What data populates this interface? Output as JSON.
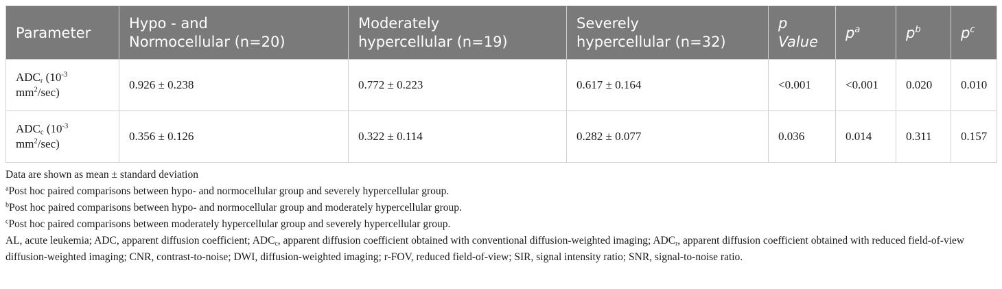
{
  "table": {
    "headers": {
      "parameter": "Parameter",
      "group1_line1": "Hypo - and",
      "group1_line2": "Normocellular (n=20)",
      "group2_line1": "Moderately",
      "group2_line2": "hypercellular (n=19)",
      "group3_line1": "Severely",
      "group3_line2": "hypercellular (n=32)",
      "pvalue_p": "p",
      "pvalue_word": "Value",
      "pa_p": "p",
      "pa_sup": "a",
      "pb_p": "p",
      "pb_sup": "b",
      "pc_p": "p",
      "pc_sup": "c"
    },
    "rows": [
      {
        "param_base": "ADC",
        "param_sub": "r",
        "param_unit_pre": " (10",
        "param_unit_exp": "-3",
        "param_line2_pre": "mm",
        "param_line2_exp": "2",
        "param_line2_post": "/sec)",
        "g1": "0.926 ± 0.238",
        "g2": "0.772 ± 0.223",
        "g3": "0.617 ± 0.164",
        "p": "<0.001",
        "pa": "<0.001",
        "pb": "0.020",
        "pc": "0.010"
      },
      {
        "param_base": "ADC",
        "param_sub": "c",
        "param_unit_pre": " (10",
        "param_unit_exp": "-3",
        "param_line2_pre": "mm",
        "param_line2_exp": "2",
        "param_line2_post": "/sec)",
        "g1": "0.356 ± 0.126",
        "g2": "0.322 ± 0.114",
        "g3": "0.282 ± 0.077",
        "p": "0.036",
        "pa": "0.014",
        "pb": "0.311",
        "pc": "0.157"
      }
    ]
  },
  "notes": {
    "data_line": "Data are shown as mean ± standard deviation",
    "fa_mark": "a",
    "fa_text": "Post hoc paired comparisons between hypo- and normocellular group and severely hypercellular group.",
    "fb_mark": "b",
    "fb_text": "Post hoc paired comparisons between hypo- and normocellular group and moderately hypercellular group.",
    "fc_mark": "c",
    "fc_text": "Post hoc paired comparisons between moderately hypercellular group and severely hypercellular group.",
    "abbr_1": "AL, acute leukemia; ADC, apparent diffusion coefficient; ADC",
    "abbr_sub_c": "c",
    "abbr_2": ", apparent diffusion coefficient obtained with conventional diffusion-weighted imaging; ADC",
    "abbr_sub_r": "r",
    "abbr_3": ", apparent diffusion coefficient obtained with reduced field-of-view diffusion-weighted imaging; CNR, contrast-to-noise; DWI, diffusion-weighted imaging; r-FOV, reduced field-of-view; SIR, signal intensity ratio; SNR, signal-to-noise ratio."
  }
}
